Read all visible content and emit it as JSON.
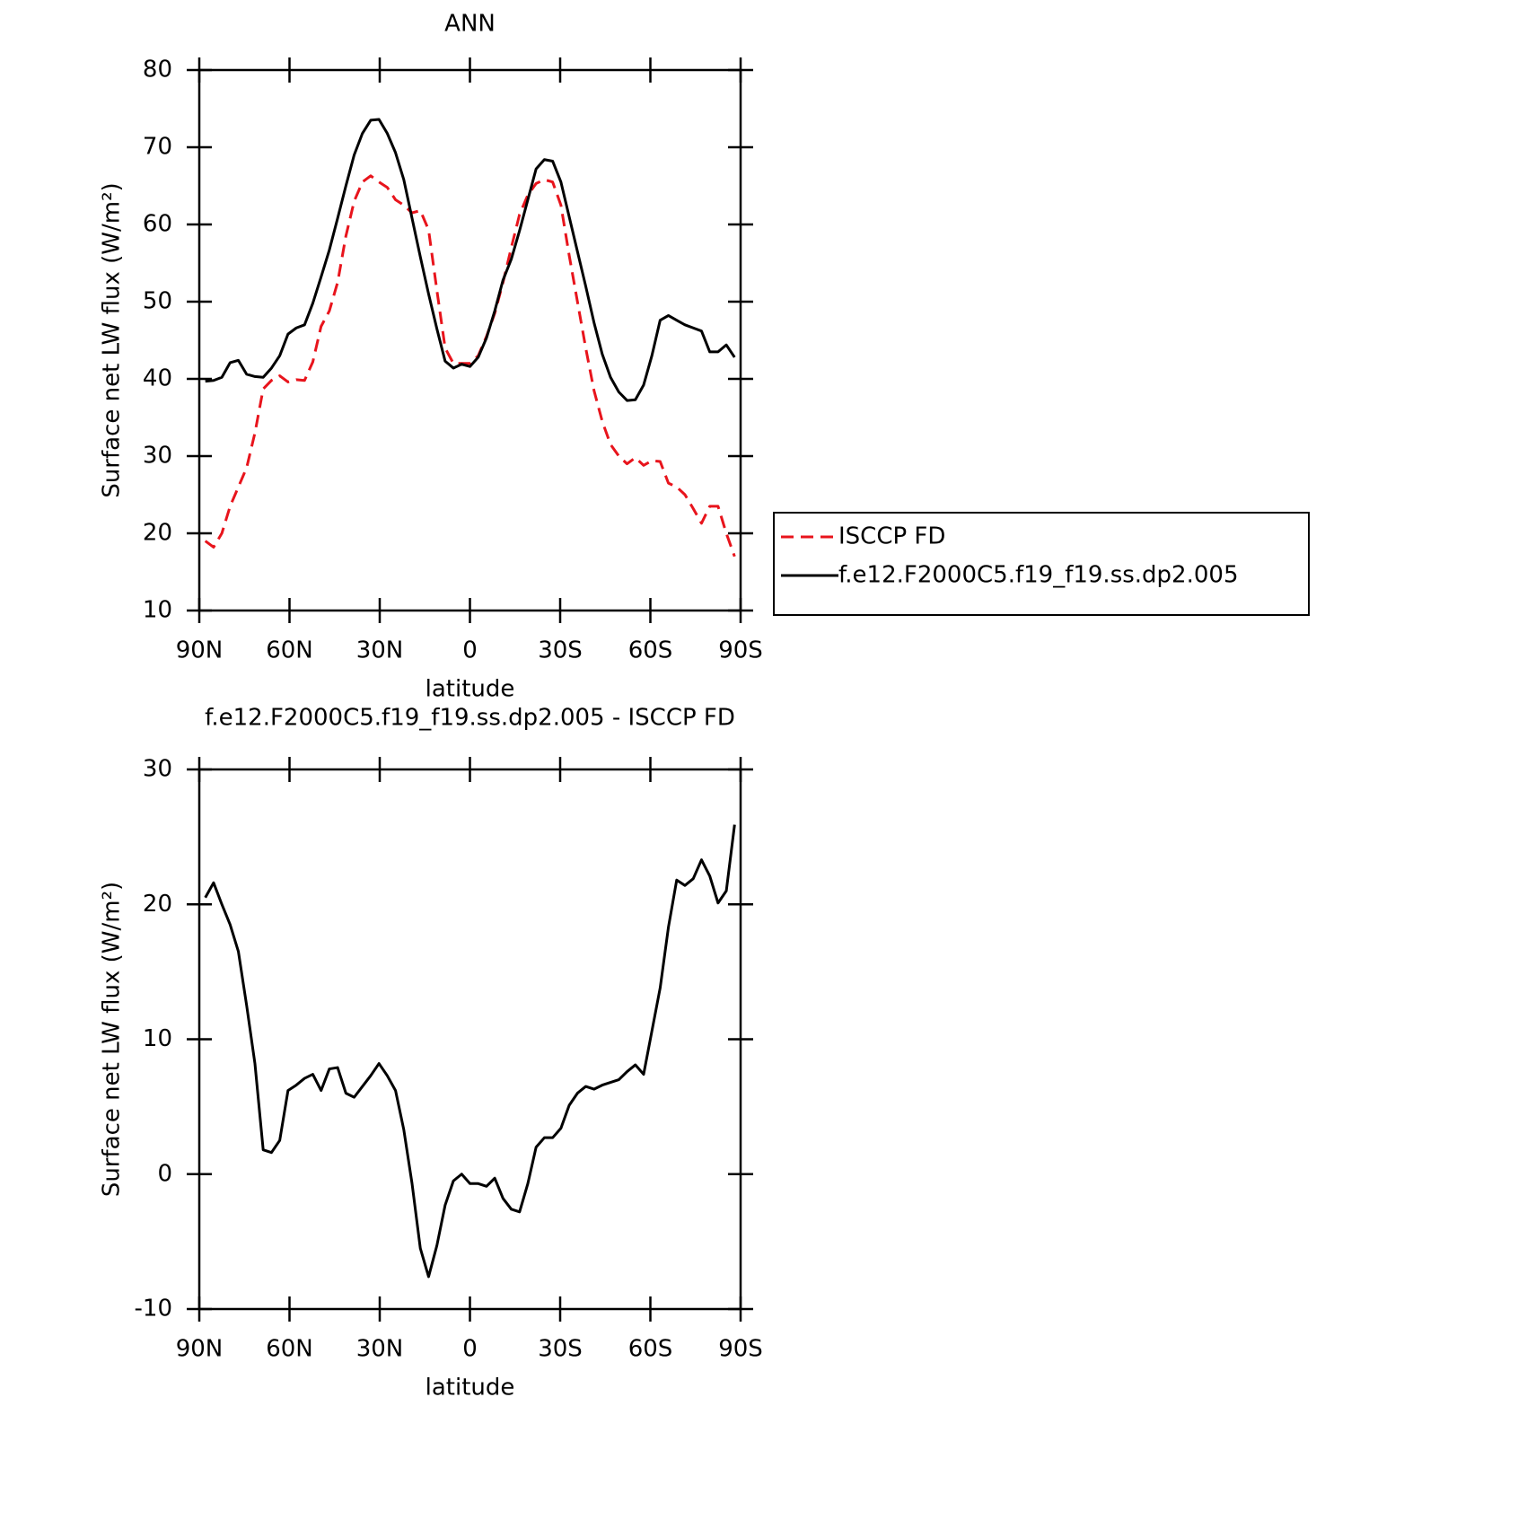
{
  "chart_data": [
    {
      "type": "line",
      "title": "ANN",
      "xlabel": "latitude",
      "ylabel": "Surface net LW flux (W/m²)",
      "xlim": [
        90,
        -90
      ],
      "ylim": [
        10,
        80
      ],
      "xticks": [
        {
          "value": 90,
          "label": "90N"
        },
        {
          "value": 60,
          "label": "60N"
        },
        {
          "value": 30,
          "label": "30N"
        },
        0,
        {
          "value": -30,
          "label": "30S"
        },
        {
          "value": -60,
          "label": "60S"
        },
        {
          "value": -90,
          "label": "90S"
        }
      ],
      "yticks": [
        10,
        20,
        30,
        40,
        50,
        60,
        70,
        80
      ],
      "legend_position": "right",
      "x": [
        88,
        85.25,
        82.5,
        79.75,
        77,
        74.25,
        71.5,
        68.75,
        66,
        63.25,
        60.5,
        57.75,
        55,
        52.25,
        49.5,
        46.75,
        44,
        41.25,
        38.5,
        35.75,
        33,
        30.25,
        27.5,
        24.75,
        22,
        19.25,
        16.5,
        13.75,
        11,
        8.25,
        5.5,
        2.75,
        0,
        -2.75,
        -5.5,
        -8.25,
        -11,
        -13.75,
        -16.5,
        -19.25,
        -22,
        -24.75,
        -27.5,
        -30.25,
        -33,
        -35.75,
        -38.5,
        -41.25,
        -44,
        -46.75,
        -49.5,
        -52.25,
        -55,
        -57.75,
        -60.5,
        -63.25,
        -66,
        -68.75,
        -71.5,
        -74.25,
        -77,
        -79.75,
        -82.5,
        -85.25,
        -88
      ],
      "series": [
        {
          "name": "ISCCP FD",
          "color": "#e8141c",
          "linestyle": "dashed",
          "values": [
            19.0,
            18.2,
            20.0,
            23.5,
            26.0,
            28.5,
            33.0,
            38.7,
            39.8,
            40.4,
            39.6,
            39.9,
            39.8,
            42.2,
            46.8,
            48.8,
            52.5,
            58.5,
            63.0,
            65.5,
            66.3,
            65.5,
            64.8,
            63.2,
            62.5,
            61.5,
            61.8,
            59.3,
            51.5,
            44.0,
            42.0,
            42.0,
            42.0,
            43.0,
            45.5,
            48.5,
            52.5,
            57.0,
            61.3,
            63.8,
            65.3,
            65.8,
            65.5,
            62.5,
            56.0,
            50.0,
            44.0,
            38.5,
            34.5,
            31.5,
            30.0,
            29.0,
            29.8,
            28.8,
            29.4,
            29.3,
            26.5,
            26.0,
            25.0,
            23.2,
            21.3,
            23.5,
            23.5,
            20.0,
            17.0
          ]
        },
        {
          "name": "f.e12.F2000C5.f19_f19.ss.dp2.005",
          "color": "#000000",
          "linestyle": "solid",
          "values": [
            39.7,
            39.8,
            40.2,
            42.1,
            42.4,
            40.6,
            40.3,
            40.2,
            41.4,
            43.0,
            45.8,
            46.6,
            47.0,
            49.8,
            53.2,
            56.7,
            60.8,
            65.0,
            69.0,
            71.8,
            73.5,
            73.6,
            71.8,
            69.3,
            65.8,
            60.8,
            55.8,
            51.0,
            46.5,
            42.3,
            41.4,
            41.9,
            41.6,
            42.8,
            45.3,
            48.8,
            52.8,
            55.5,
            59.2,
            63.2,
            67.2,
            68.4,
            68.2,
            65.5,
            61.0,
            56.5,
            52.0,
            47.3,
            43.2,
            40.2,
            38.3,
            37.2,
            37.3,
            39.2,
            43.0,
            47.6,
            48.2,
            47.6,
            47.0,
            46.6,
            46.2,
            43.5,
            43.5,
            44.4,
            42.8
          ]
        }
      ]
    },
    {
      "type": "line",
      "title": "f.e12.F2000C5.f19_f19.ss.dp2.005 - ISCCP FD",
      "xlabel": "latitude",
      "ylabel": "Surface net LW flux (W/m²)",
      "xlim": [
        90,
        -90
      ],
      "ylim": [
        -10,
        30
      ],
      "xticks": [
        {
          "value": 90,
          "label": "90N"
        },
        {
          "value": 60,
          "label": "60N"
        },
        {
          "value": 30,
          "label": "30N"
        },
        0,
        {
          "value": -30,
          "label": "30S"
        },
        {
          "value": -60,
          "label": "60S"
        },
        {
          "value": -90,
          "label": "90S"
        }
      ],
      "yticks": [
        -10,
        0,
        10,
        20,
        30
      ],
      "x": [
        88,
        85.25,
        82.5,
        79.75,
        77,
        74.25,
        71.5,
        68.75,
        66,
        63.25,
        60.5,
        57.75,
        55,
        52.25,
        49.5,
        46.75,
        44,
        41.25,
        38.5,
        35.75,
        33,
        30.25,
        27.5,
        24.75,
        22,
        19.25,
        16.5,
        13.75,
        11,
        8.25,
        5.5,
        2.75,
        0,
        -2.75,
        -5.5,
        -8.25,
        -11,
        -13.75,
        -16.5,
        -19.25,
        -22,
        -24.75,
        -27.5,
        -30.25,
        -33,
        -35.75,
        -38.5,
        -41.25,
        -44,
        -46.75,
        -49.5,
        -52.25,
        -55,
        -57.75,
        -60.5,
        -63.25,
        -66,
        -68.75,
        -71.5,
        -74.25,
        -77,
        -79.75,
        -82.5,
        -85.25,
        -88
      ],
      "series": [
        {
          "color": "#000000",
          "linestyle": "solid",
          "values": [
            20.5,
            21.6,
            20.0,
            18.5,
            16.5,
            12.5,
            8.2,
            1.8,
            1.6,
            2.5,
            6.2,
            6.6,
            7.1,
            7.4,
            6.2,
            7.8,
            7.9,
            6.0,
            5.7,
            6.5,
            7.3,
            8.2,
            7.3,
            6.2,
            3.3,
            -0.7,
            -5.5,
            -7.6,
            -5.3,
            -2.3,
            -0.5,
            0.0,
            -0.7,
            -0.7,
            -0.9,
            -0.3,
            -1.8,
            -2.6,
            -2.8,
            -0.7,
            2.0,
            2.7,
            2.7,
            3.4,
            5.1,
            6.0,
            6.5,
            6.3,
            6.6,
            6.8,
            7.0,
            7.6,
            8.1,
            7.4,
            10.6,
            13.8,
            18.3,
            21.8,
            21.4,
            21.9,
            23.3,
            22.1,
            20.1,
            21.0,
            25.9
          ]
        }
      ]
    }
  ]
}
